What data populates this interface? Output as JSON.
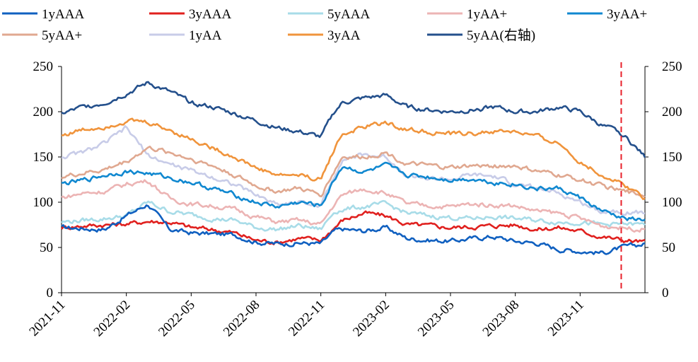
{
  "chart_data": {
    "type": "line",
    "legend": {
      "placement": "top",
      "entries": [
        "1yAAA",
        "3yAAA",
        "5yAAA",
        "1yAA+",
        "3yAA+",
        "5yAA+",
        "1yAA",
        "3yAA",
        "5yAA(右轴)"
      ]
    },
    "x_ticks": [
      "2021-11",
      "2022-02",
      "2022-05",
      "2022-08",
      "2022-11",
      "2023-02",
      "2023-05",
      "2023-08",
      "2023-11"
    ],
    "ylim": [
      0,
      250
    ],
    "y_ticks": [
      "0",
      "50",
      "100",
      "150",
      "200",
      "250"
    ],
    "y2lim": [
      0,
      250
    ],
    "y2_ticks": [
      "0",
      "50",
      "100",
      "150",
      "200",
      "250"
    ],
    "grid": false,
    "marker_line": {
      "x": "2024-01",
      "color": "#e8202a",
      "style": "dashed"
    },
    "series": [
      {
        "name": "1yAAA",
        "color": "#1060c0",
        "axis": "left",
        "x": [
          "2021-11",
          "2021-12",
          "2022-01",
          "2022-02",
          "2022-03",
          "2022-04",
          "2022-05",
          "2022-06",
          "2022-07",
          "2022-08",
          "2022-09",
          "2022-10",
          "2022-11",
          "2022-11-20",
          "2022-12",
          "2023-01",
          "2023-02",
          "2023-03",
          "2023-04",
          "2023-05",
          "2023-06",
          "2023-07",
          "2023-08",
          "2023-09",
          "2023-10",
          "2023-11",
          "2023-12",
          "2024-01",
          "2024-02"
        ],
        "values": [
          72,
          71,
          70,
          85,
          98,
          70,
          66,
          65,
          64,
          56,
          54,
          55,
          54,
          68,
          70,
          68,
          72,
          60,
          58,
          57,
          60,
          62,
          57,
          55,
          48,
          46,
          44,
          50,
          54
        ]
      },
      {
        "name": "3yAAA",
        "color": "#e0201e",
        "axis": "left",
        "x": [
          "2021-11",
          "2021-12",
          "2022-01",
          "2022-02",
          "2022-03",
          "2022-04",
          "2022-05",
          "2022-06",
          "2022-07",
          "2022-08",
          "2022-09",
          "2022-10",
          "2022-11",
          "2022-11-20",
          "2022-12",
          "2023-01",
          "2023-02",
          "2023-03",
          "2023-04",
          "2023-05",
          "2023-06",
          "2023-07",
          "2023-08",
          "2023-09",
          "2023-10",
          "2023-11",
          "2023-12",
          "2024-01",
          "2024-02"
        ],
        "values": [
          72,
          74,
          75,
          76,
          79,
          78,
          72,
          70,
          66,
          58,
          56,
          60,
          58,
          72,
          80,
          88,
          85,
          75,
          74,
          72,
          73,
          74,
          75,
          70,
          72,
          68,
          62,
          58,
          56
        ]
      },
      {
        "name": "5yAAA",
        "color": "#a8dce8",
        "axis": "left",
        "x": [
          "2021-11",
          "2021-12",
          "2022-01",
          "2022-02",
          "2022-03",
          "2022-04",
          "2022-05",
          "2022-06",
          "2022-07",
          "2022-08",
          "2022-09",
          "2022-10",
          "2022-11",
          "2022-11-20",
          "2022-12",
          "2023-01",
          "2023-02",
          "2023-03",
          "2023-04",
          "2023-05",
          "2023-06",
          "2023-07",
          "2023-08",
          "2023-09",
          "2023-10",
          "2023-11",
          "2023-12",
          "2024-01",
          "2024-02"
        ],
        "values": [
          78,
          80,
          82,
          85,
          100,
          90,
          86,
          82,
          80,
          72,
          70,
          74,
          70,
          90,
          92,
          95,
          98,
          88,
          85,
          83,
          82,
          84,
          82,
          80,
          78,
          78,
          75,
          76,
          75
        ]
      },
      {
        "name": "1yAA+",
        "color": "#ecb4b4",
        "axis": "left",
        "x": [
          "2021-11",
          "2021-12",
          "2022-01",
          "2022-02",
          "2022-03",
          "2022-04",
          "2022-05",
          "2022-06",
          "2022-07",
          "2022-08",
          "2022-09",
          "2022-10",
          "2022-11",
          "2022-11-20",
          "2022-12",
          "2023-01",
          "2023-02",
          "2023-03",
          "2023-04",
          "2023-05",
          "2023-06",
          "2023-07",
          "2023-08",
          "2023-09",
          "2023-10",
          "2023-11",
          "2023-12",
          "2024-01",
          "2024-02"
        ],
        "values": [
          105,
          110,
          112,
          120,
          124,
          104,
          98,
          96,
          92,
          84,
          78,
          80,
          75,
          98,
          108,
          115,
          110,
          98,
          96,
          95,
          98,
          97,
          96,
          90,
          88,
          82,
          74,
          72,
          70
        ]
      },
      {
        "name": "3yAA+",
        "color": "#1088d0",
        "axis": "left",
        "x": [
          "2021-11",
          "2021-12",
          "2022-01",
          "2022-02",
          "2022-03",
          "2022-04",
          "2022-05",
          "2022-06",
          "2022-07",
          "2022-08",
          "2022-09",
          "2022-10",
          "2022-11",
          "2022-11-20",
          "2022-12",
          "2023-01",
          "2023-02",
          "2023-03",
          "2023-04",
          "2023-05",
          "2023-06",
          "2023-07",
          "2023-08",
          "2023-09",
          "2023-10",
          "2023-11",
          "2023-12",
          "2024-01",
          "2024-02"
        ],
        "values": [
          120,
          124,
          130,
          134,
          132,
          127,
          122,
          115,
          108,
          100,
          95,
          100,
          96,
          125,
          140,
          133,
          140,
          130,
          128,
          125,
          126,
          122,
          120,
          115,
          115,
          105,
          90,
          82,
          80
        ]
      },
      {
        "name": "5yAA+",
        "color": "#e0a890",
        "axis": "left",
        "x": [
          "2021-11",
          "2021-12",
          "2022-01",
          "2022-02",
          "2022-03",
          "2022-04",
          "2022-05",
          "2022-06",
          "2022-07",
          "2022-08",
          "2022-09",
          "2022-10",
          "2022-11",
          "2022-11-20",
          "2022-12",
          "2023-01",
          "2023-02",
          "2023-03",
          "2023-04",
          "2023-05",
          "2023-06",
          "2023-07",
          "2023-08",
          "2023-09",
          "2023-10",
          "2023-11",
          "2023-12",
          "2024-01",
          "2024-02"
        ],
        "values": [
          128,
          132,
          136,
          145,
          160,
          155,
          148,
          140,
          130,
          118,
          112,
          115,
          108,
          135,
          150,
          150,
          155,
          142,
          140,
          138,
          140,
          140,
          140,
          134,
          130,
          125,
          118,
          112,
          108
        ]
      },
      {
        "name": "1yAA",
        "color": "#c8cce8",
        "axis": "left",
        "x": [
          "2021-11",
          "2021-12",
          "2022-01",
          "2022-02",
          "2022-03",
          "2022-04",
          "2022-05",
          "2022-06",
          "2022-07",
          "2022-08",
          "2022-09",
          "2022-10",
          "2022-11",
          "2022-11-20",
          "2022-12",
          "2023-01",
          "2023-02",
          "2023-03",
          "2023-04",
          "2023-05",
          "2023-06",
          "2023-07",
          "2023-08",
          "2023-09",
          "2023-10",
          "2023-11",
          "2023-12",
          "2024-01",
          "2024-02"
        ],
        "values": [
          150,
          155,
          165,
          182,
          152,
          142,
          135,
          128,
          120,
          108,
          98,
          100,
          96,
          130,
          148,
          152,
          150,
          130,
          126,
          125,
          130,
          128,
          120,
          115,
          110,
          100,
          90,
          90,
          88
        ]
      },
      {
        "name": "3yAA",
        "color": "#f0943c",
        "axis": "left",
        "x": [
          "2021-11",
          "2021-12",
          "2022-01",
          "2022-02",
          "2022-03",
          "2022-04",
          "2022-05",
          "2022-06",
          "2022-07",
          "2022-08",
          "2022-09",
          "2022-10",
          "2022-11",
          "2022-11-20",
          "2022-12",
          "2023-01",
          "2023-02",
          "2023-03",
          "2023-04",
          "2023-05",
          "2023-06",
          "2023-07",
          "2023-08",
          "2023-09",
          "2023-10",
          "2023-11",
          "2023-12",
          "2024-01",
          "2024-02"
        ],
        "values": [
          174,
          180,
          184,
          190,
          188,
          180,
          170,
          160,
          150,
          138,
          130,
          130,
          125,
          160,
          175,
          183,
          188,
          180,
          178,
          175,
          176,
          178,
          178,
          172,
          165,
          145,
          130,
          120,
          105
        ]
      },
      {
        "name": "5yAA(右轴)",
        "color": "#24508c",
        "axis": "right",
        "x": [
          "2021-11",
          "2021-12",
          "2022-01",
          "2022-02",
          "2022-03",
          "2022-04",
          "2022-05",
          "2022-06",
          "2022-07",
          "2022-08",
          "2022-09",
          "2022-10",
          "2022-11",
          "2022-11-20",
          "2022-12",
          "2023-01",
          "2023-02",
          "2023-03",
          "2023-04",
          "2023-05",
          "2023-06",
          "2023-07",
          "2023-08",
          "2023-09",
          "2023-10",
          "2023-11",
          "2023-12",
          "2024-01",
          "2024-02"
        ],
        "values": [
          198,
          205,
          210,
          220,
          232,
          222,
          210,
          205,
          198,
          190,
          182,
          178,
          172,
          200,
          210,
          215,
          218,
          205,
          202,
          200,
          202,
          205,
          200,
          200,
          205,
          200,
          185,
          175,
          150
        ]
      }
    ]
  }
}
